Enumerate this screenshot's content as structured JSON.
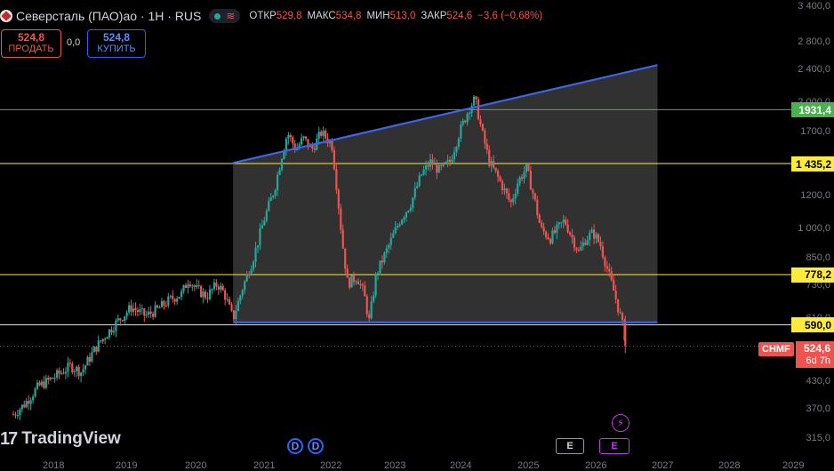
{
  "header": {
    "title": "Северсталь (ПАО)ао · 1Н · RUS",
    "ohlc": [
      {
        "label": "ОТКР",
        "value": "529,8"
      },
      {
        "label": "МАКС",
        "value": "534,8"
      },
      {
        "label": "МИН",
        "value": "513,0"
      },
      {
        "label": "ЗАКР",
        "value": "524,6"
      },
      {
        "label": "",
        "value": "−3,6 (−0,68%)"
      }
    ]
  },
  "trade": {
    "sell_price": "524,8",
    "sell_label": "ПРОДАТЬ",
    "spread": "0,0",
    "buy_price": "524,8",
    "buy_label": "КУПИТЬ"
  },
  "price_axis": {
    "labels": [
      "3 400,0",
      "2 800,0",
      "2 400,0",
      "2 000,0",
      "1700,0",
      "1200,0",
      "1 000,0",
      "850,0",
      "730,0",
      "610,0",
      "430,0",
      "370,0",
      "315,0"
    ]
  },
  "levels": [
    {
      "value": 1931.4,
      "label": "1931,4",
      "color": "#4caf50"
    },
    {
      "value": 1435.2,
      "label": "1 435,2",
      "color": "#ffeb3b"
    },
    {
      "value": 778.2,
      "label": "778,2",
      "color": "#ffeb3b"
    },
    {
      "value": 590.0,
      "label": "590,0",
      "color": "#ffeb3b"
    }
  ],
  "current": {
    "symbol": "CHMF",
    "price": "524,6",
    "countdown": "6d 7h"
  },
  "branding": {
    "name": "TradingView",
    "mark": "17"
  },
  "markers": {
    "dividend_1": "D",
    "dividend_2": "D",
    "earnings_1": "E",
    "earnings_2": "E"
  },
  "time_axis": {
    "labels": [
      "2018",
      "2019",
      "2020",
      "2021",
      "2022",
      "2023",
      "2024",
      "2025",
      "2026",
      "2027",
      "2028",
      "2029"
    ]
  },
  "colors": {
    "up": "#26a69a",
    "down": "#ef5350",
    "channel": "#3d63e6",
    "channel_fill": "#3a3a3a"
  },
  "chart_data": {
    "type": "candlestick",
    "scale": "log",
    "ylim": [
      300,
      3500
    ],
    "x_unit": "years",
    "xlim": [
      2017.5,
      2029.6
    ],
    "close_series": [
      [
        2017.55,
        360
      ],
      [
        2017.7,
        380
      ],
      [
        2017.9,
        420
      ],
      [
        2018.1,
        440
      ],
      [
        2018.35,
        470
      ],
      [
        2018.5,
        455
      ],
      [
        2018.7,
        520
      ],
      [
        2018.85,
        560
      ],
      [
        2019.0,
        600
      ],
      [
        2019.2,
        650
      ],
      [
        2019.4,
        620
      ],
      [
        2019.55,
        640
      ],
      [
        2019.75,
        680
      ],
      [
        2019.9,
        700
      ],
      [
        2020.0,
        760
      ],
      [
        2020.1,
        720
      ],
      [
        2020.25,
        690
      ],
      [
        2020.4,
        740
      ],
      [
        2020.5,
        700
      ],
      [
        2020.62,
        610
      ],
      [
        2020.75,
        720
      ],
      [
        2020.9,
        850
      ],
      [
        2021.05,
        1050
      ],
      [
        2021.2,
        1250
      ],
      [
        2021.3,
        1500
      ],
      [
        2021.38,
        1700
      ],
      [
        2021.5,
        1550
      ],
      [
        2021.6,
        1650
      ],
      [
        2021.72,
        1550
      ],
      [
        2021.85,
        1700
      ],
      [
        2022.0,
        1600
      ],
      [
        2022.05,
        1350
      ],
      [
        2022.15,
        920
      ],
      [
        2022.22,
        740
      ],
      [
        2022.35,
        770
      ],
      [
        2022.45,
        700
      ],
      [
        2022.52,
        600
      ],
      [
        2022.62,
        780
      ],
      [
        2022.78,
        900
      ],
      [
        2022.95,
        1050
      ],
      [
        2023.1,
        1150
      ],
      [
        2023.25,
        1350
      ],
      [
        2023.38,
        1450
      ],
      [
        2023.5,
        1380
      ],
      [
        2023.65,
        1450
      ],
      [
        2023.78,
        1700
      ],
      [
        2023.92,
        1950
      ],
      [
        2024.0,
        2050
      ],
      [
        2024.1,
        1700
      ],
      [
        2024.2,
        1450
      ],
      [
        2024.35,
        1300
      ],
      [
        2024.5,
        1150
      ],
      [
        2024.6,
        1300
      ],
      [
        2024.72,
        1400
      ],
      [
        2024.82,
        1200
      ],
      [
        2024.92,
        1000
      ],
      [
        2025.05,
        950
      ],
      [
        2025.15,
        1000
      ],
      [
        2025.25,
        1050
      ],
      [
        2025.35,
        960
      ],
      [
        2025.45,
        880
      ],
      [
        2025.55,
        950
      ],
      [
        2025.65,
        980
      ],
      [
        2025.75,
        920
      ],
      [
        2025.85,
        800
      ],
      [
        2025.95,
        700
      ],
      [
        2026.05,
        600
      ],
      [
        2026.12,
        524.6
      ]
    ],
    "channel": {
      "upper": [
        [
          2020.62,
          1440
        ],
        [
          2026.55,
          2470
        ]
      ],
      "lower": [
        [
          2020.62,
          598
        ],
        [
          2026.55,
          598
        ]
      ]
    },
    "horizontal_levels": [
      1931.4,
      1435.2,
      778.2,
      590.0
    ],
    "last_price": 524.6
  }
}
